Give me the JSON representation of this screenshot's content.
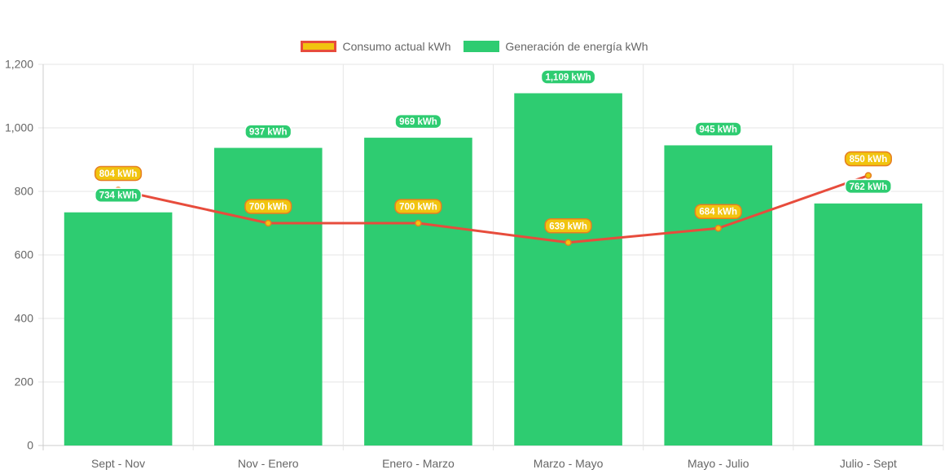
{
  "chart_data": {
    "type": "bar",
    "title": "",
    "xlabel": "",
    "ylabel": "",
    "ylim": [
      0,
      1200
    ],
    "yticks": [
      0,
      200,
      400,
      600,
      800,
      1000,
      1200
    ],
    "ytick_labels": [
      "0",
      "200",
      "400",
      "600",
      "800",
      "1,000",
      "1,200"
    ],
    "categories": [
      "Sept - Nov",
      "Nov - Enero",
      "Enero - Marzo",
      "Marzo - Mayo",
      "Mayo - Julio",
      "Julio - Sept"
    ],
    "grid": true,
    "legend_position": "top-center",
    "series": [
      {
        "name": "Consumo actual kWh",
        "type": "line",
        "color": "#e74c3c",
        "point_color": "#f1c40f",
        "values": [
          804,
          700,
          700,
          639,
          684,
          850
        ],
        "labels": [
          "804 kWh",
          "700 kWh",
          "700 kWh",
          "639 kWh",
          "684 kWh",
          "850 kWh"
        ]
      },
      {
        "name": "Generación de energía kWh",
        "type": "bar",
        "color": "#2ecc71",
        "values": [
          734,
          937,
          969,
          1109,
          945,
          762
        ],
        "labels": [
          "734 kWh",
          "937 kWh",
          "969 kWh",
          "1,109 kWh",
          "945 kWh",
          "762 kWh"
        ]
      }
    ]
  }
}
